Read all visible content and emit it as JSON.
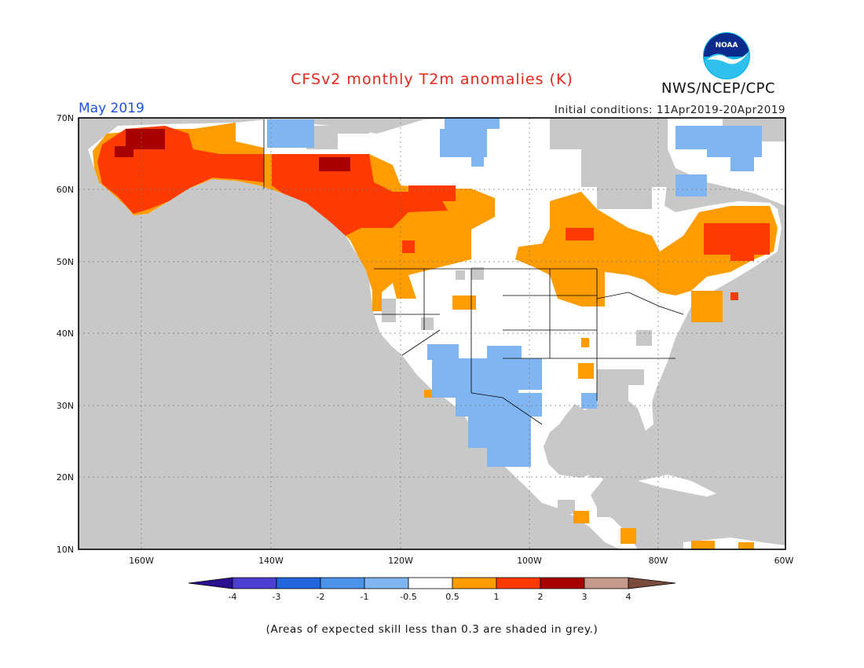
{
  "header": {
    "title": "CFSv2 monthly T2m anomalies (K)",
    "month": "May 2019",
    "initial_conditions": "Initial conditions: 11Apr2019-20Apr2019",
    "agency": "NWS/NCEP/CPC",
    "logo_text": "NOAA"
  },
  "map": {
    "lat_labels": [
      "70N",
      "60N",
      "50N",
      "40N",
      "30N",
      "20N",
      "10N"
    ],
    "lon_labels": [
      "160W",
      "140W",
      "120W",
      "100W",
      "80W",
      "60W"
    ],
    "ocean_color": "#c8c8c8",
    "land_color": "#ffffff"
  },
  "colorbar": {
    "labels": [
      "-4",
      "-3",
      "-2",
      "-1",
      "-0.5",
      "0.5",
      "1",
      "2",
      "3",
      "4"
    ],
    "colors": [
      "#2a0f8f",
      "#4b3fcf",
      "#2266dd",
      "#4a92ea",
      "#7fb6f2",
      "#ffffff",
      "#ff9d00",
      "#ff3a00",
      "#a80000",
      "#c49a8a",
      "#7a4a3a"
    ]
  },
  "footer": {
    "note": "(Areas of expected skill less than 0.3 are shaded in grey.)"
  }
}
